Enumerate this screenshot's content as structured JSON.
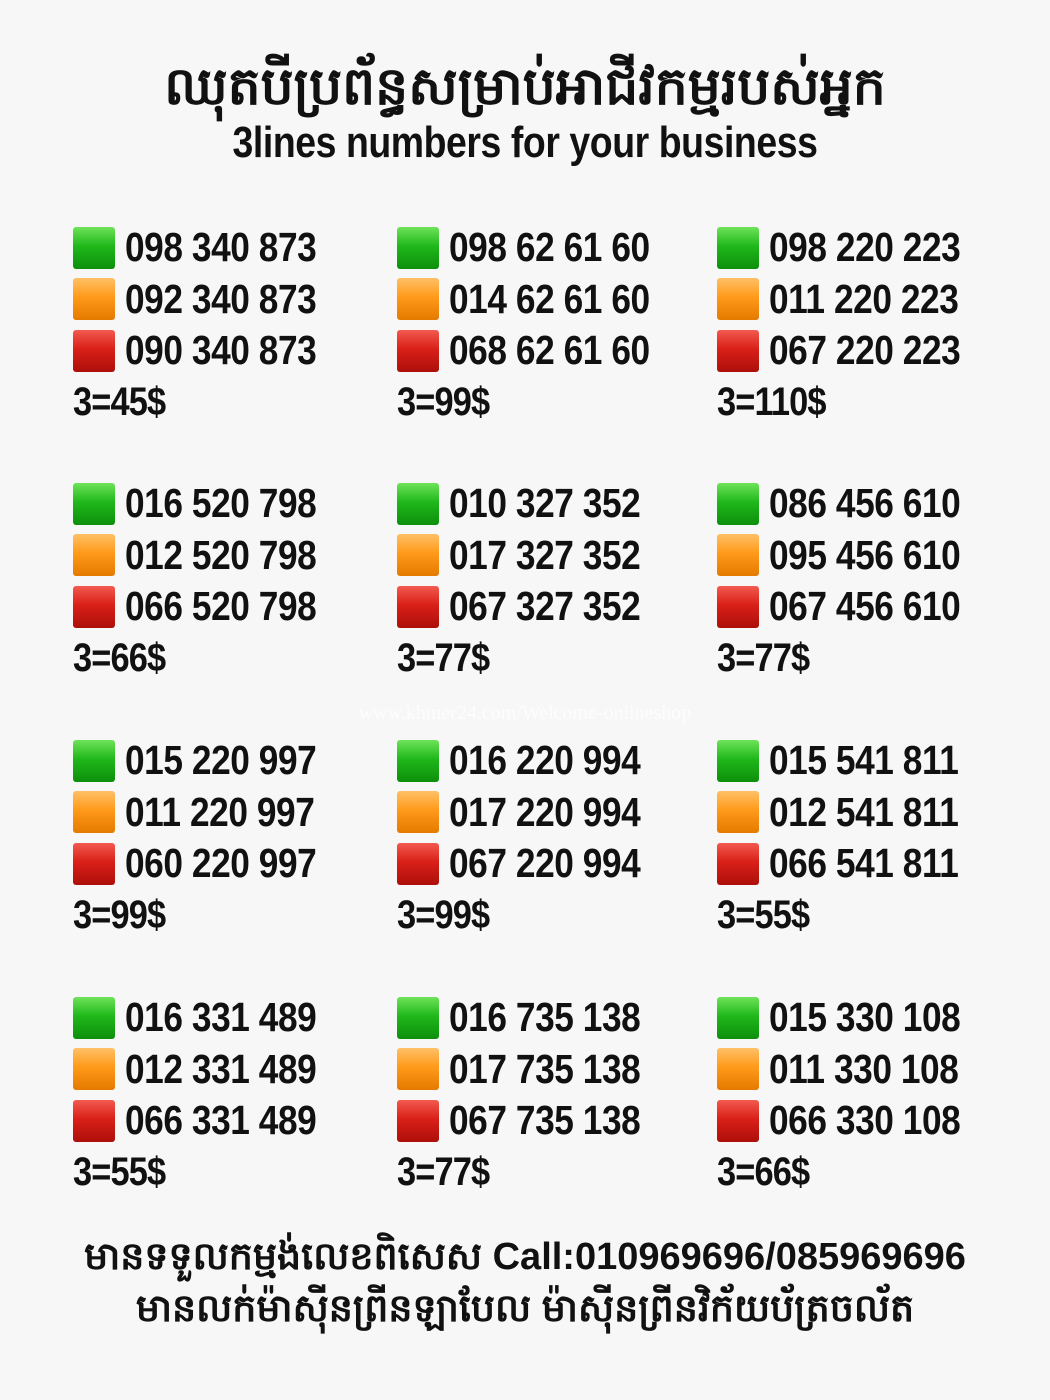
{
  "header": {
    "title_khmer": "ឈុតបីប្រព័ន្ធសម្រាប់អាជីវកម្មរបស់អ្នក",
    "title_english": "3lines numbers for your business"
  },
  "colors": {
    "green": "#20b81a",
    "orange": "#ff9a1a",
    "red": "#d92018"
  },
  "watermark": "www.khmer24.com/Welcome-onlineshop",
  "sets": [
    {
      "numbers": [
        "098 340 873",
        "092 340 873",
        "090 340 873"
      ],
      "price": "3=45$"
    },
    {
      "numbers": [
        "098 62 61 60",
        "014 62 61 60",
        "068 62 61 60"
      ],
      "price": "3=99$"
    },
    {
      "numbers": [
        "098 220 223",
        "011 220 223",
        "067 220 223"
      ],
      "price": "3=110$"
    },
    {
      "numbers": [
        "016 520 798",
        "012 520 798",
        "066 520 798"
      ],
      "price": "3=66$"
    },
    {
      "numbers": [
        "010 327 352",
        "017 327 352",
        "067 327 352"
      ],
      "price": "3=77$"
    },
    {
      "numbers": [
        "086 456 610",
        "095 456 610",
        "067 456 610"
      ],
      "price": "3=77$"
    },
    {
      "numbers": [
        "015 220 997",
        "011 220 997",
        "060 220 997"
      ],
      "price": "3=99$"
    },
    {
      "numbers": [
        "016 220 994",
        "017 220 994",
        "067 220 994"
      ],
      "price": "3=99$"
    },
    {
      "numbers": [
        "015 541 811",
        "012 541 811",
        "066 541 811"
      ],
      "price": "3=55$"
    },
    {
      "numbers": [
        "016 331 489",
        "012 331 489",
        "066 331 489"
      ],
      "price": "3=55$"
    },
    {
      "numbers": [
        "016 735 138",
        "017 735 138",
        "067 735 138"
      ],
      "price": "3=77$"
    },
    {
      "numbers": [
        "015 330 108",
        "011 330 108",
        "066 330 108"
      ],
      "price": "3=66$"
    }
  ],
  "footer": {
    "line1": "មានទទួលកម្មង់លេខពិសេស Call:010969696/085969696",
    "line2": "មានលក់ម៉ាស៊ីនព្រីនឡាបែល ម៉ាស៊ីនព្រីនវិក័យប័ត្រចល័ត"
  }
}
